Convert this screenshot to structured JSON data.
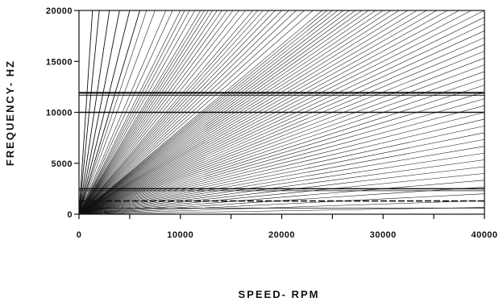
{
  "chart_data": {
    "type": "line",
    "title": "",
    "xlabel": "SPEED- RPM",
    "ylabel": "FREQUENCY- HZ",
    "xlim": [
      0,
      40000
    ],
    "ylim": [
      0,
      20000
    ],
    "x_ticks": [
      0,
      5000,
      10000,
      15000,
      20000,
      25000,
      30000,
      35000,
      40000
    ],
    "x_tick_labels": [
      "0",
      "",
      "10000",
      "",
      "20000",
      "",
      "30000",
      "",
      "40000"
    ],
    "y_ticks": [
      0,
      5000,
      10000,
      15000,
      20000
    ],
    "y_tick_labels": [
      "0",
      "5000",
      "10000",
      "15000",
      "20000"
    ],
    "grid": false,
    "legend": "none",
    "order_lines": {
      "description_of_family": "engine order lines f = n * rpm / 60",
      "orders": [
        1,
        2,
        3,
        4,
        5,
        6,
        7,
        8,
        9,
        10,
        11,
        12,
        13,
        14,
        15,
        16,
        17,
        18,
        19,
        20,
        21,
        22,
        23,
        24,
        25,
        26,
        27,
        28,
        29,
        30,
        31,
        32,
        33,
        34,
        35,
        36,
        37,
        38,
        39,
        40,
        41,
        42,
        43,
        44,
        45,
        46,
        47,
        48,
        49,
        50,
        52,
        54,
        56,
        58,
        60,
        62,
        64,
        66,
        68,
        70,
        73,
        76,
        79,
        82,
        85,
        88,
        91,
        94,
        97,
        100,
        105,
        110,
        115,
        120,
        130,
        140,
        160,
        180,
        200,
        240,
        300,
        400,
        600,
        900
      ],
      "x_start": 0,
      "x_end": 40000,
      "color": "#111111"
    },
    "horizontal_lines": [
      {
        "y": 11950,
        "x_start": 0,
        "x_end": 40000,
        "style": "solid",
        "weight": "heavy"
      },
      {
        "y": 11800,
        "x_start": 0,
        "x_end": 40000,
        "style": "solid",
        "weight": "normal"
      },
      {
        "y": 11650,
        "x_start": 0,
        "x_end": 40000,
        "style": "solid",
        "weight": "normal"
      },
      {
        "y": 10000,
        "x_start": 0,
        "x_end": 40000,
        "style": "solid",
        "weight": "heavy"
      },
      {
        "y": 2500,
        "x_start": 0,
        "x_end": 40000,
        "style": "solid",
        "weight": "heavy"
      },
      {
        "y": 2300,
        "x_start": 0,
        "x_end": 40000,
        "style": "solid",
        "weight": "normal"
      },
      {
        "y": 1300,
        "x_start": 0,
        "x_end": 40000,
        "style": "dashed",
        "weight": "heavy"
      },
      {
        "y": 600,
        "x_start": 0,
        "x_end": 40000,
        "style": "solid",
        "weight": "normal"
      }
    ],
    "colors": {
      "ink": "#111111",
      "background": "#ffffff"
    }
  }
}
